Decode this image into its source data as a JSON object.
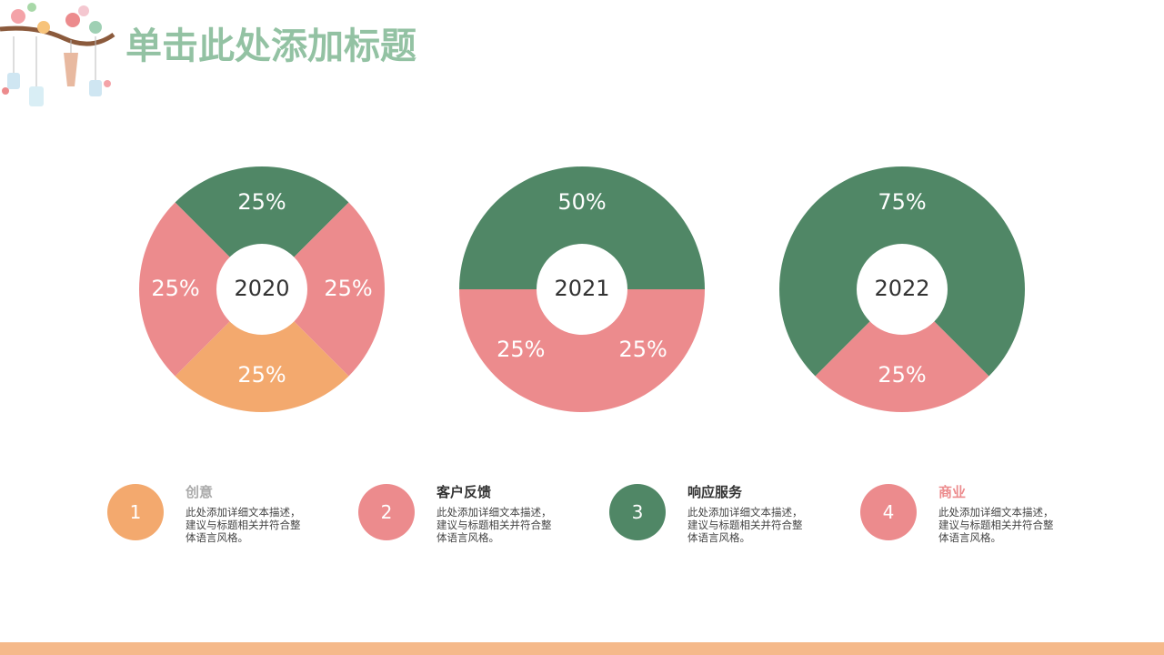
{
  "title": "单击此处添加标题",
  "chart_data": [
    {
      "type": "pie",
      "title": "2020",
      "values": [
        25,
        25,
        25,
        25
      ],
      "value_labels": [
        "25%",
        "25%",
        "25%",
        "25%"
      ],
      "colors": [
        "#508766",
        "#ec8b8d",
        "#f3a96e",
        "#ec8b8d"
      ]
    },
    {
      "type": "pie",
      "title": "2021",
      "values": [
        50,
        25,
        25
      ],
      "value_labels": [
        "50%",
        "25%",
        "25%"
      ],
      "colors": [
        "#508766",
        "#ec8b8d",
        "#ec8b8d"
      ]
    },
    {
      "type": "pie",
      "title": "2022",
      "values": [
        75,
        25
      ],
      "value_labels": [
        "75%",
        "25%"
      ],
      "colors": [
        "#508766",
        "#ec8b8d"
      ]
    }
  ],
  "items": [
    {
      "number": 1,
      "label": "创意",
      "text": "此处添加详细文本描述，建议与标题相关并符合整体语言风格。",
      "color": "#f3a96e",
      "label_color": "#aaaaaa"
    },
    {
      "number": 2,
      "label": "客户反馈",
      "text": "此处添加详细文本描述，建议与标题相关并符合整体语言风格。",
      "color": "#ec8b8d",
      "label_color": "#333333"
    },
    {
      "number": 3,
      "label": "响应服务",
      "text": "此处添加详细文本描述，建议与标题相关并符合整体语言风格。",
      "color": "#508766",
      "label_color": "#333333"
    },
    {
      "number": 4,
      "label": "商业",
      "text": "此处添加详细文本描述，建议与标题相关并符合整体语言风格。",
      "color": "#ec8b8d",
      "label_color": "#ec8b8d"
    }
  ]
}
